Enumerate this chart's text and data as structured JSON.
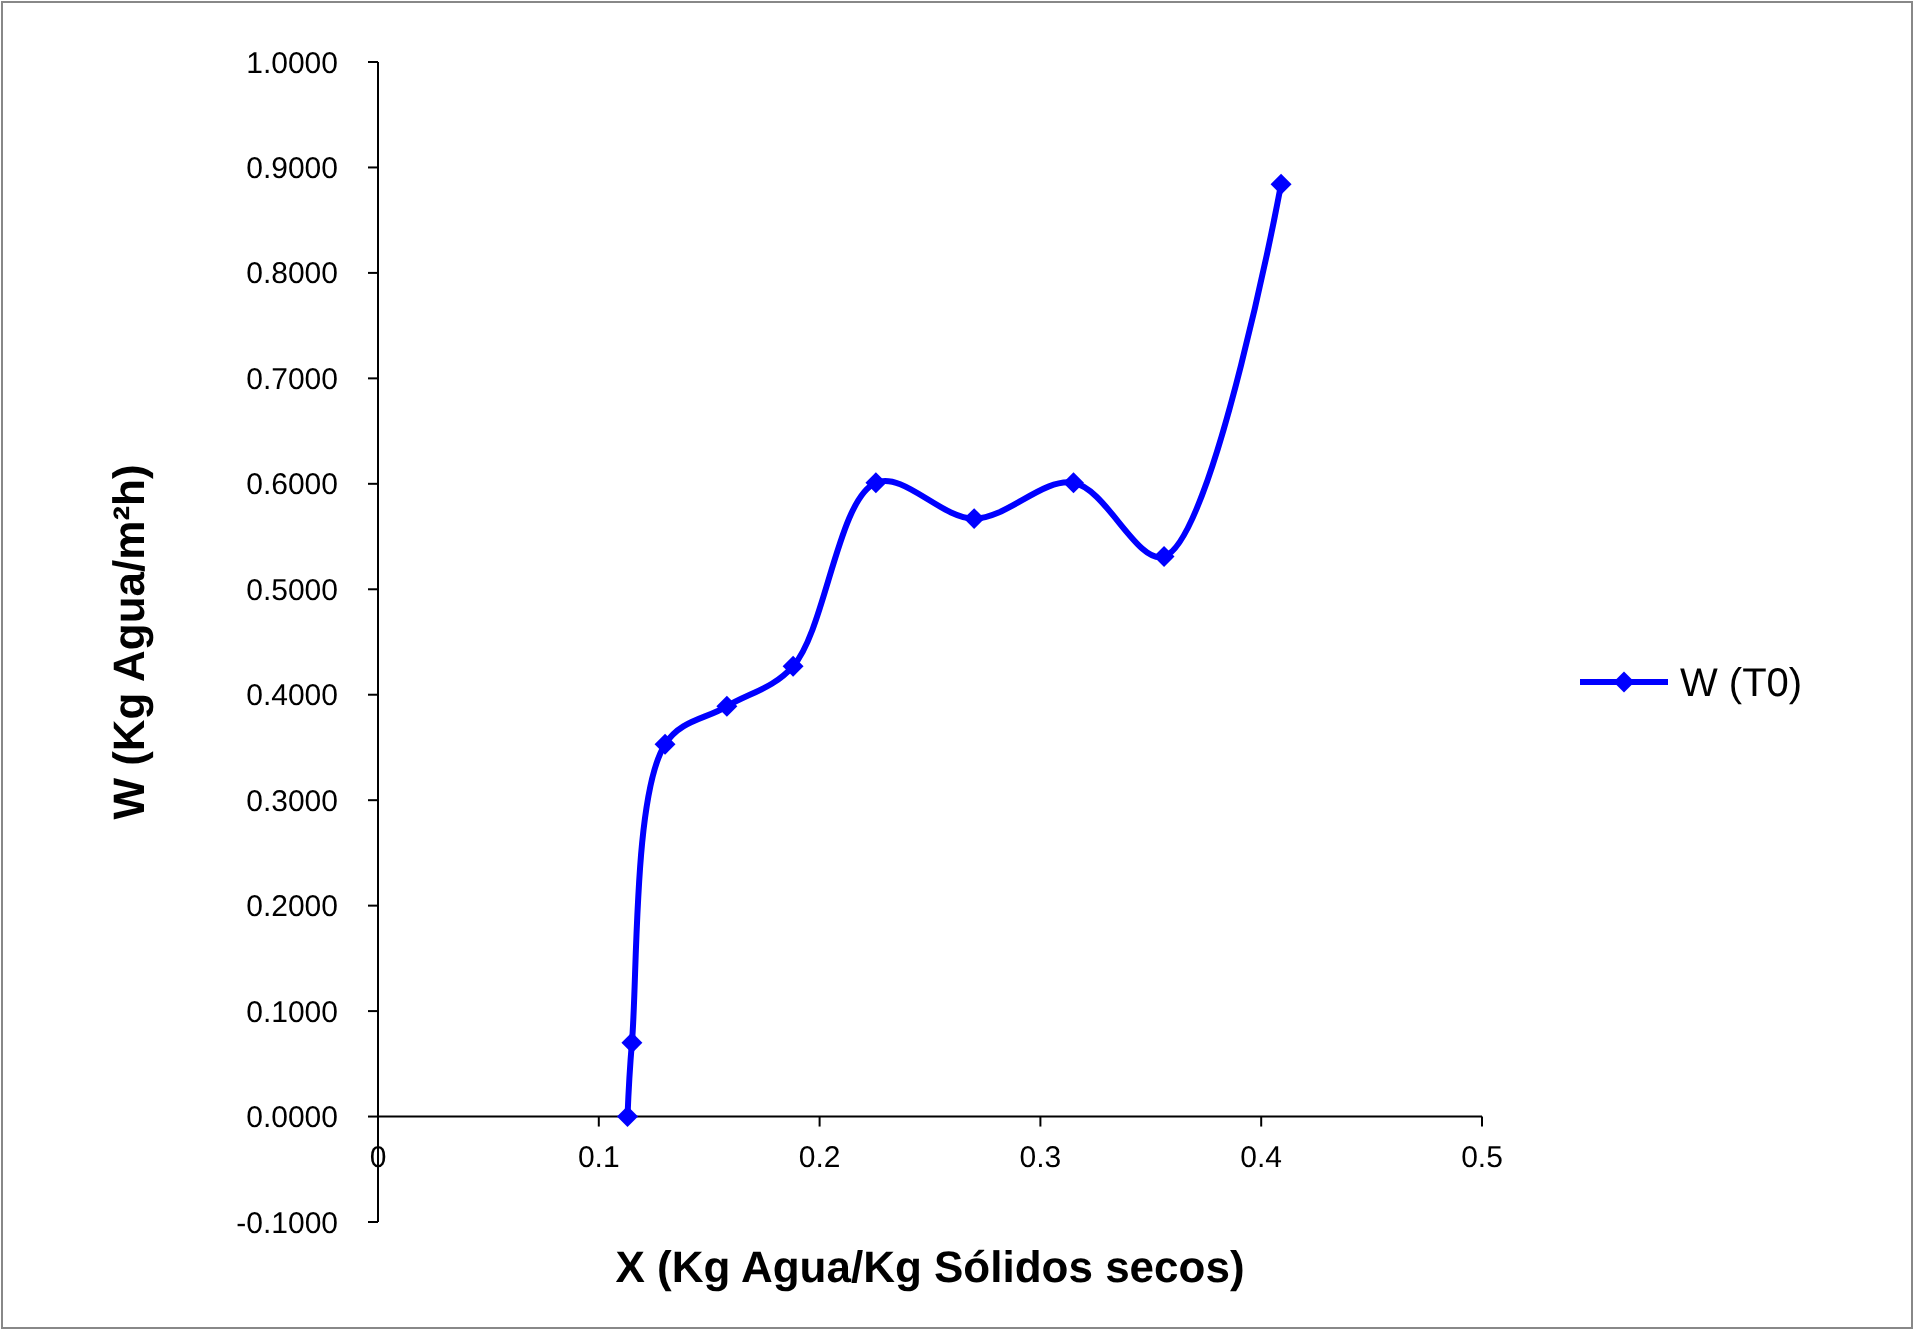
{
  "chart_data": {
    "type": "line",
    "xlabel": "X (Kg Agua/Kg Sólidos secos)",
    "ylabel": "W (Kg Agua/m²h)",
    "xlim": [
      0,
      0.5
    ],
    "xticks": [
      0,
      0.1,
      0.2,
      0.3,
      0.4,
      0.5
    ],
    "ylim": [
      -0.1,
      1
    ],
    "yticks": [
      {
        "value": -0.1,
        "label": "-0.1000"
      },
      {
        "value": 0,
        "label": "0.0000"
      },
      {
        "value": 0.1,
        "label": "0.1000"
      },
      {
        "value": 0.2,
        "label": "0.2000"
      },
      {
        "value": 0.3,
        "label": "0.3000"
      },
      {
        "value": 0.4,
        "label": "0.4000"
      },
      {
        "value": 0.5,
        "label": "0.5000"
      },
      {
        "value": 0.6,
        "label": "0.6000"
      },
      {
        "value": 0.7,
        "label": "0.7000"
      },
      {
        "value": 0.8,
        "label": "0.8000"
      },
      {
        "value": 0.9,
        "label": "0.9000"
      },
      {
        "value": 1,
        "label": "1.0000"
      }
    ],
    "x": [
      0.113,
      0.115,
      0.13,
      0.158,
      0.188,
      0.2255,
      0.27,
      0.315,
      0.356,
      0.409
    ],
    "series": [
      {
        "name": "W (T0)",
        "color": "#0000ff",
        "values": [
          0,
          0.07,
          0.353,
          0.389,
          0.427,
          0.601,
          0.567,
          0.601,
          0.531,
          0.884
        ]
      }
    ],
    "marker": "diamond",
    "grid": false,
    "legend": "right",
    "line_style": "solid"
  }
}
